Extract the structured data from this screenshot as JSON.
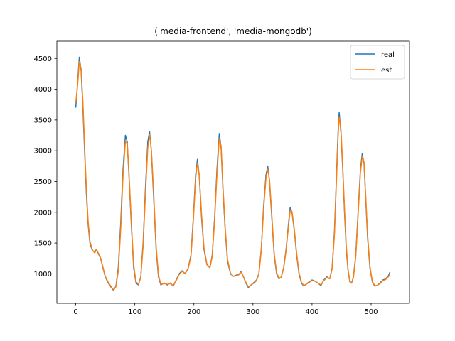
{
  "chart_data": {
    "type": "line",
    "title": "('media-frontend', 'media-mongodb')",
    "xlabel": "",
    "ylabel": "",
    "xlim": [
      -32,
      565
    ],
    "ylim": [
      520,
      4780
    ],
    "x_ticks": [
      0,
      100,
      200,
      300,
      400,
      500
    ],
    "y_ticks": [
      1000,
      1500,
      2000,
      2500,
      3000,
      3500,
      4000,
      4500
    ],
    "grid": false,
    "legend_position": "top-right",
    "series": [
      {
        "name": "real",
        "color": "#1f77b4",
        "points": [
          [
            0,
            3700
          ],
          [
            3,
            4100
          ],
          [
            6,
            4520
          ],
          [
            9,
            4300
          ],
          [
            12,
            3700
          ],
          [
            15,
            3000
          ],
          [
            18,
            2300
          ],
          [
            21,
            1800
          ],
          [
            24,
            1500
          ],
          [
            28,
            1380
          ],
          [
            32,
            1350
          ],
          [
            35,
            1400
          ],
          [
            38,
            1330
          ],
          [
            42,
            1250
          ],
          [
            46,
            1100
          ],
          [
            50,
            950
          ],
          [
            55,
            850
          ],
          [
            60,
            780
          ],
          [
            64,
            730
          ],
          [
            68,
            800
          ],
          [
            72,
            1100
          ],
          [
            76,
            1800
          ],
          [
            80,
            2700
          ],
          [
            84,
            3250
          ],
          [
            87,
            3150
          ],
          [
            90,
            2600
          ],
          [
            94,
            1800
          ],
          [
            98,
            1100
          ],
          [
            102,
            850
          ],
          [
            106,
            820
          ],
          [
            110,
            950
          ],
          [
            114,
            1500
          ],
          [
            118,
            2400
          ],
          [
            122,
            3150
          ],
          [
            125,
            3310
          ],
          [
            128,
            3000
          ],
          [
            132,
            2200
          ],
          [
            136,
            1400
          ],
          [
            140,
            950
          ],
          [
            144,
            820
          ],
          [
            150,
            850
          ],
          [
            155,
            820
          ],
          [
            160,
            850
          ],
          [
            165,
            800
          ],
          [
            170,
            900
          ],
          [
            175,
            1000
          ],
          [
            180,
            1050
          ],
          [
            185,
            1000
          ],
          [
            190,
            1080
          ],
          [
            195,
            1300
          ],
          [
            199,
            1900
          ],
          [
            203,
            2600
          ],
          [
            206,
            2860
          ],
          [
            209,
            2600
          ],
          [
            213,
            1900
          ],
          [
            217,
            1400
          ],
          [
            222,
            1150
          ],
          [
            227,
            1100
          ],
          [
            231,
            1300
          ],
          [
            235,
            1900
          ],
          [
            239,
            2700
          ],
          [
            243,
            3280
          ],
          [
            246,
            3050
          ],
          [
            249,
            2400
          ],
          [
            253,
            1700
          ],
          [
            257,
            1200
          ],
          [
            262,
            1000
          ],
          [
            267,
            960
          ],
          [
            272,
            980
          ],
          [
            277,
            1000
          ],
          [
            280,
            1040
          ],
          [
            284,
            950
          ],
          [
            288,
            850
          ],
          [
            292,
            780
          ],
          [
            297,
            820
          ],
          [
            302,
            860
          ],
          [
            306,
            900
          ],
          [
            310,
            1000
          ],
          [
            314,
            1400
          ],
          [
            318,
            2100
          ],
          [
            322,
            2600
          ],
          [
            325,
            2750
          ],
          [
            328,
            2500
          ],
          [
            332,
            1900
          ],
          [
            336,
            1300
          ],
          [
            340,
            1000
          ],
          [
            344,
            920
          ],
          [
            348,
            950
          ],
          [
            352,
            1100
          ],
          [
            356,
            1400
          ],
          [
            360,
            1800
          ],
          [
            363,
            2080
          ],
          [
            366,
            2000
          ],
          [
            370,
            1700
          ],
          [
            374,
            1300
          ],
          [
            378,
            1000
          ],
          [
            382,
            850
          ],
          [
            386,
            800
          ],
          [
            390,
            830
          ],
          [
            395,
            870
          ],
          [
            400,
            900
          ],
          [
            405,
            880
          ],
          [
            410,
            850
          ],
          [
            415,
            810
          ],
          [
            420,
            900
          ],
          [
            425,
            950
          ],
          [
            430,
            920
          ],
          [
            434,
            1100
          ],
          [
            438,
            1700
          ],
          [
            441,
            2500
          ],
          [
            444,
            3300
          ],
          [
            446,
            3620
          ],
          [
            449,
            3300
          ],
          [
            452,
            2700
          ],
          [
            455,
            2000
          ],
          [
            458,
            1400
          ],
          [
            461,
            1050
          ],
          [
            464,
            870
          ],
          [
            467,
            850
          ],
          [
            470,
            950
          ],
          [
            474,
            1300
          ],
          [
            478,
            2000
          ],
          [
            482,
            2700
          ],
          [
            485,
            2950
          ],
          [
            488,
            2800
          ],
          [
            491,
            2200
          ],
          [
            494,
            1600
          ],
          [
            498,
            1100
          ],
          [
            502,
            870
          ],
          [
            506,
            800
          ],
          [
            510,
            810
          ],
          [
            515,
            850
          ],
          [
            520,
            900
          ],
          [
            525,
            920
          ],
          [
            530,
            980
          ],
          [
            532,
            1030
          ]
        ]
      },
      {
        "name": "est",
        "color": "#ff7f0e",
        "points": [
          [
            0,
            3780
          ],
          [
            3,
            4050
          ],
          [
            6,
            4450
          ],
          [
            9,
            4330
          ],
          [
            12,
            3800
          ],
          [
            15,
            3080
          ],
          [
            18,
            2380
          ],
          [
            21,
            1850
          ],
          [
            24,
            1530
          ],
          [
            28,
            1390
          ],
          [
            32,
            1340
          ],
          [
            35,
            1390
          ],
          [
            38,
            1340
          ],
          [
            42,
            1260
          ],
          [
            46,
            1110
          ],
          [
            50,
            960
          ],
          [
            55,
            860
          ],
          [
            60,
            790
          ],
          [
            64,
            740
          ],
          [
            68,
            790
          ],
          [
            72,
            1050
          ],
          [
            76,
            1700
          ],
          [
            80,
            2600
          ],
          [
            84,
            3150
          ],
          [
            87,
            3120
          ],
          [
            90,
            2650
          ],
          [
            94,
            1850
          ],
          [
            98,
            1150
          ],
          [
            102,
            870
          ],
          [
            106,
            830
          ],
          [
            110,
            940
          ],
          [
            114,
            1450
          ],
          [
            118,
            2300
          ],
          [
            122,
            3050
          ],
          [
            125,
            3260
          ],
          [
            128,
            3020
          ],
          [
            132,
            2280
          ],
          [
            136,
            1450
          ],
          [
            140,
            980
          ],
          [
            144,
            830
          ],
          [
            150,
            840
          ],
          [
            155,
            830
          ],
          [
            160,
            840
          ],
          [
            165,
            810
          ],
          [
            170,
            890
          ],
          [
            175,
            990
          ],
          [
            180,
            1040
          ],
          [
            185,
            1010
          ],
          [
            190,
            1070
          ],
          [
            195,
            1280
          ],
          [
            199,
            1850
          ],
          [
            203,
            2550
          ],
          [
            206,
            2800
          ],
          [
            209,
            2620
          ],
          [
            213,
            1950
          ],
          [
            217,
            1430
          ],
          [
            222,
            1160
          ],
          [
            227,
            1100
          ],
          [
            231,
            1280
          ],
          [
            235,
            1850
          ],
          [
            239,
            2620
          ],
          [
            243,
            3200
          ],
          [
            246,
            3080
          ],
          [
            249,
            2450
          ],
          [
            253,
            1750
          ],
          [
            257,
            1230
          ],
          [
            262,
            1010
          ],
          [
            267,
            960
          ],
          [
            272,
            970
          ],
          [
            277,
            990
          ],
          [
            280,
            1030
          ],
          [
            284,
            950
          ],
          [
            288,
            860
          ],
          [
            292,
            790
          ],
          [
            297,
            820
          ],
          [
            302,
            850
          ],
          [
            306,
            890
          ],
          [
            310,
            990
          ],
          [
            314,
            1380
          ],
          [
            318,
            2050
          ],
          [
            322,
            2550
          ],
          [
            325,
            2700
          ],
          [
            328,
            2530
          ],
          [
            332,
            1950
          ],
          [
            336,
            1330
          ],
          [
            340,
            1020
          ],
          [
            344,
            930
          ],
          [
            348,
            950
          ],
          [
            352,
            1090
          ],
          [
            356,
            1380
          ],
          [
            360,
            1760
          ],
          [
            363,
            2030
          ],
          [
            366,
            2010
          ],
          [
            370,
            1730
          ],
          [
            374,
            1330
          ],
          [
            378,
            1020
          ],
          [
            382,
            860
          ],
          [
            386,
            810
          ],
          [
            390,
            830
          ],
          [
            395,
            860
          ],
          [
            400,
            890
          ],
          [
            405,
            880
          ],
          [
            410,
            850
          ],
          [
            415,
            820
          ],
          [
            420,
            890
          ],
          [
            425,
            940
          ],
          [
            430,
            920
          ],
          [
            434,
            1080
          ],
          [
            438,
            1650
          ],
          [
            441,
            2430
          ],
          [
            444,
            3220
          ],
          [
            446,
            3550
          ],
          [
            449,
            3350
          ],
          [
            452,
            2750
          ],
          [
            455,
            2050
          ],
          [
            458,
            1450
          ],
          [
            461,
            1070
          ],
          [
            464,
            880
          ],
          [
            467,
            850
          ],
          [
            470,
            940
          ],
          [
            474,
            1270
          ],
          [
            478,
            1950
          ],
          [
            482,
            2650
          ],
          [
            485,
            2900
          ],
          [
            488,
            2820
          ],
          [
            491,
            2250
          ],
          [
            494,
            1650
          ],
          [
            498,
            1130
          ],
          [
            502,
            880
          ],
          [
            506,
            810
          ],
          [
            510,
            810
          ],
          [
            515,
            840
          ],
          [
            520,
            890
          ],
          [
            525,
            910
          ],
          [
            530,
            960
          ],
          [
            532,
            1000
          ]
        ]
      }
    ]
  }
}
